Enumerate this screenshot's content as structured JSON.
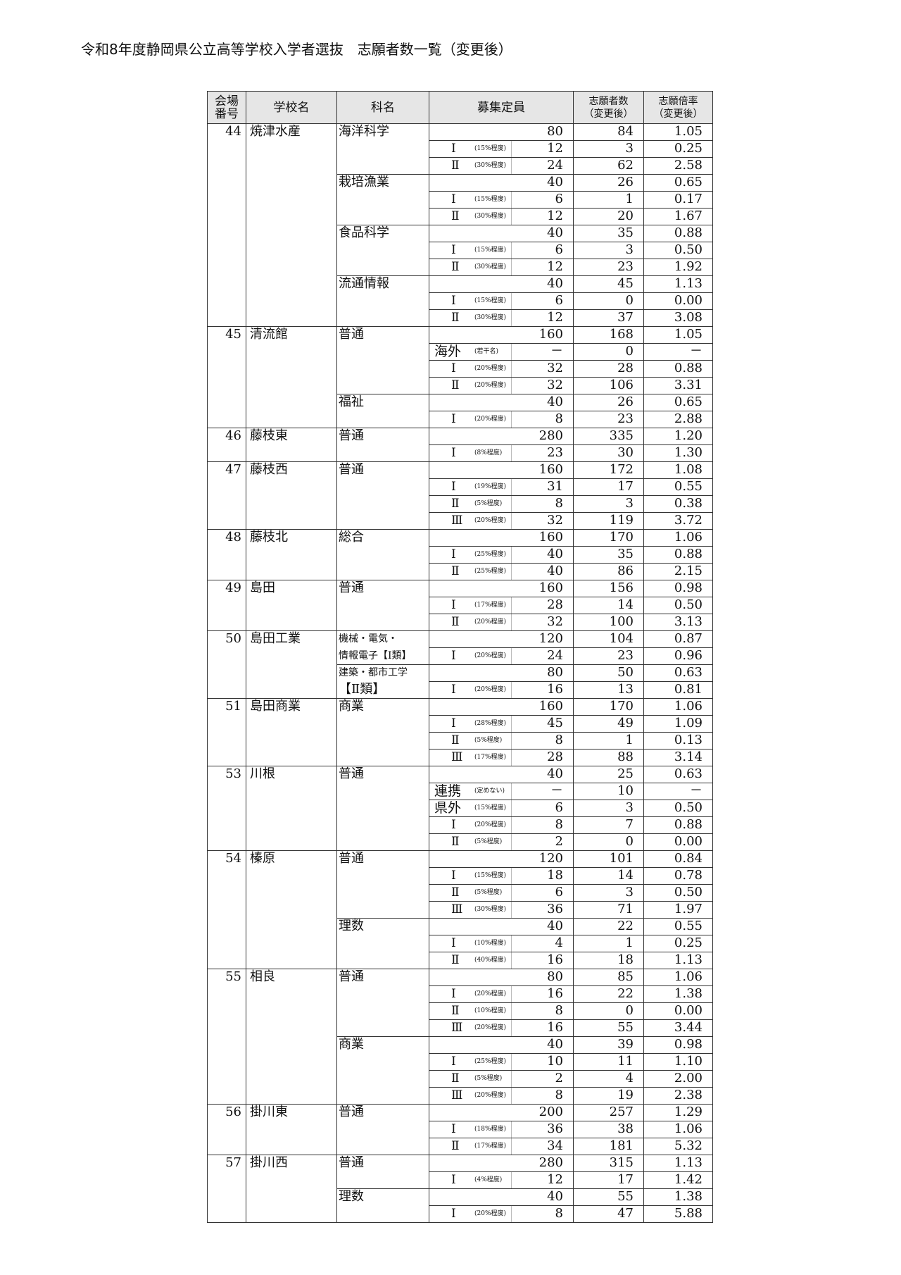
{
  "title": "令和8年度静岡県公立高等学校入学者選抜　志願者数一覧（変更後）",
  "header": {
    "no": [
      "会場",
      "番号"
    ],
    "school": "学校名",
    "subject": "科名",
    "quota": "募集定員",
    "applicants": [
      "志願者数",
      "（変更後）"
    ],
    "ratio": [
      "志願倍率",
      "（変更後）"
    ]
  },
  "schools": [
    {
      "no": "44",
      "name": "焼津水産",
      "subjects": [
        {
          "name": [
            "海洋科学"
          ],
          "rows": [
            {
              "cap": "80",
              "app": "84",
              "ratio": "1.05"
            },
            {
              "type": "Ⅰ",
              "note": "(15%程度)",
              "cap": "12",
              "app": "3",
              "ratio": "0.25"
            },
            {
              "type": "Ⅱ",
              "note": "(30%程度)",
              "cap": "24",
              "app": "62",
              "ratio": "2.58"
            }
          ]
        },
        {
          "name": [
            "栽培漁業"
          ],
          "rows": [
            {
              "cap": "40",
              "app": "26",
              "ratio": "0.65"
            },
            {
              "type": "Ⅰ",
              "note": "(15%程度)",
              "cap": "6",
              "app": "1",
              "ratio": "0.17"
            },
            {
              "type": "Ⅱ",
              "note": "(30%程度)",
              "cap": "12",
              "app": "20",
              "ratio": "1.67"
            }
          ]
        },
        {
          "name": [
            "食品科学"
          ],
          "rows": [
            {
              "cap": "40",
              "app": "35",
              "ratio": "0.88"
            },
            {
              "type": "Ⅰ",
              "note": "(15%程度)",
              "cap": "6",
              "app": "3",
              "ratio": "0.50"
            },
            {
              "type": "Ⅱ",
              "note": "(30%程度)",
              "cap": "12",
              "app": "23",
              "ratio": "1.92"
            }
          ]
        },
        {
          "name": [
            "流通情報"
          ],
          "rows": [
            {
              "cap": "40",
              "app": "45",
              "ratio": "1.13"
            },
            {
              "type": "Ⅰ",
              "note": "(15%程度)",
              "cap": "6",
              "app": "0",
              "ratio": "0.00"
            },
            {
              "type": "Ⅱ",
              "note": "(30%程度)",
              "cap": "12",
              "app": "37",
              "ratio": "3.08"
            }
          ]
        }
      ]
    },
    {
      "no": "45",
      "name": "清流館",
      "subjects": [
        {
          "name": [
            "普通"
          ],
          "rows": [
            {
              "cap": "160",
              "app": "168",
              "ratio": "1.05"
            },
            {
              "type": "海外",
              "note": "(若干名)",
              "cap": "－",
              "app": "0",
              "ratio": "－"
            },
            {
              "type": "Ⅰ",
              "note": "(20%程度)",
              "cap": "32",
              "app": "28",
              "ratio": "0.88"
            },
            {
              "type": "Ⅱ",
              "note": "(20%程度)",
              "cap": "32",
              "app": "106",
              "ratio": "3.31"
            }
          ]
        },
        {
          "name": [
            "福祉"
          ],
          "rows": [
            {
              "cap": "40",
              "app": "26",
              "ratio": "0.65"
            },
            {
              "type": "Ⅰ",
              "note": "(20%程度)",
              "cap": "8",
              "app": "23",
              "ratio": "2.88"
            }
          ]
        }
      ]
    },
    {
      "no": "46",
      "name": "藤枝東",
      "subjects": [
        {
          "name": [
            "普通"
          ],
          "rows": [
            {
              "cap": "280",
              "app": "335",
              "ratio": "1.20"
            },
            {
              "type": "Ⅰ",
              "note": "(8%程度)",
              "cap": "23",
              "app": "30",
              "ratio": "1.30"
            }
          ]
        }
      ]
    },
    {
      "no": "47",
      "name": "藤枝西",
      "subjects": [
        {
          "name": [
            "普通"
          ],
          "rows": [
            {
              "cap": "160",
              "app": "172",
              "ratio": "1.08"
            },
            {
              "type": "Ⅰ",
              "note": "(19%程度)",
              "cap": "31",
              "app": "17",
              "ratio": "0.55"
            },
            {
              "type": "Ⅱ",
              "note": "(5%程度)",
              "cap": "8",
              "app": "3",
              "ratio": "0.38"
            },
            {
              "type": "Ⅲ",
              "note": "(20%程度)",
              "cap": "32",
              "app": "119",
              "ratio": "3.72"
            }
          ]
        }
      ]
    },
    {
      "no": "48",
      "name": "藤枝北",
      "subjects": [
        {
          "name": [
            "総合"
          ],
          "rows": [
            {
              "cap": "160",
              "app": "170",
              "ratio": "1.06"
            },
            {
              "type": "Ⅰ",
              "note": "(25%程度)",
              "cap": "40",
              "app": "35",
              "ratio": "0.88"
            },
            {
              "type": "Ⅱ",
              "note": "(25%程度)",
              "cap": "40",
              "app": "86",
              "ratio": "2.15"
            }
          ]
        }
      ]
    },
    {
      "no": "49",
      "name": "島田",
      "subjects": [
        {
          "name": [
            "普通"
          ],
          "rows": [
            {
              "cap": "160",
              "app": "156",
              "ratio": "0.98"
            },
            {
              "type": "Ⅰ",
              "note": "(17%程度)",
              "cap": "28",
              "app": "14",
              "ratio": "0.50"
            },
            {
              "type": "Ⅱ",
              "note": "(20%程度)",
              "cap": "32",
              "app": "100",
              "ratio": "3.13"
            }
          ]
        }
      ]
    },
    {
      "no": "50",
      "name": "島田工業",
      "subjects": [
        {
          "name": [
            "機械・電気・",
            "情報電子【Ⅰ類】"
          ],
          "rows": [
            {
              "cap": "120",
              "app": "104",
              "ratio": "0.87"
            },
            {
              "type": "Ⅰ",
              "note": "(20%程度)",
              "cap": "24",
              "app": "23",
              "ratio": "0.96"
            }
          ]
        },
        {
          "name": [
            "建築・都市工学",
            "【Ⅱ類】"
          ],
          "rows": [
            {
              "cap": "80",
              "app": "50",
              "ratio": "0.63"
            },
            {
              "type": "Ⅰ",
              "note": "(20%程度)",
              "cap": "16",
              "app": "13",
              "ratio": "0.81"
            }
          ]
        }
      ]
    },
    {
      "no": "51",
      "name": "島田商業",
      "subjects": [
        {
          "name": [
            "商業"
          ],
          "rows": [
            {
              "cap": "160",
              "app": "170",
              "ratio": "1.06"
            },
            {
              "type": "Ⅰ",
              "note": "(28%程度)",
              "cap": "45",
              "app": "49",
              "ratio": "1.09"
            },
            {
              "type": "Ⅱ",
              "note": "(5%程度)",
              "cap": "8",
              "app": "1",
              "ratio": "0.13"
            },
            {
              "type": "Ⅲ",
              "note": "(17%程度)",
              "cap": "28",
              "app": "88",
              "ratio": "3.14"
            }
          ]
        }
      ]
    },
    {
      "no": "53",
      "name": "川根",
      "subjects": [
        {
          "name": [
            "普通"
          ],
          "rows": [
            {
              "cap": "40",
              "app": "25",
              "ratio": "0.63"
            },
            {
              "type": "連携",
              "note": "(定めない)",
              "cap": "－",
              "app": "10",
              "ratio": "－"
            },
            {
              "type": "県外",
              "note": "(15%程度)",
              "cap": "6",
              "app": "3",
              "ratio": "0.50"
            },
            {
              "type": "Ⅰ",
              "note": "(20%程度)",
              "cap": "8",
              "app": "7",
              "ratio": "0.88"
            },
            {
              "type": "Ⅱ",
              "note": "(5%程度)",
              "cap": "2",
              "app": "0",
              "ratio": "0.00"
            }
          ]
        }
      ]
    },
    {
      "no": "54",
      "name": "榛原",
      "subjects": [
        {
          "name": [
            "普通"
          ],
          "rows": [
            {
              "cap": "120",
              "app": "101",
              "ratio": "0.84"
            },
            {
              "type": "Ⅰ",
              "note": "(15%程度)",
              "cap": "18",
              "app": "14",
              "ratio": "0.78"
            },
            {
              "type": "Ⅱ",
              "note": "(5%程度)",
              "cap": "6",
              "app": "3",
              "ratio": "0.50"
            },
            {
              "type": "Ⅲ",
              "note": "(30%程度)",
              "cap": "36",
              "app": "71",
              "ratio": "1.97"
            }
          ]
        },
        {
          "name": [
            "理数"
          ],
          "rows": [
            {
              "cap": "40",
              "app": "22",
              "ratio": "0.55"
            },
            {
              "type": "Ⅰ",
              "note": "(10%程度)",
              "cap": "4",
              "app": "1",
              "ratio": "0.25"
            },
            {
              "type": "Ⅱ",
              "note": "(40%程度)",
              "cap": "16",
              "app": "18",
              "ratio": "1.13"
            }
          ]
        }
      ]
    },
    {
      "no": "55",
      "name": "相良",
      "subjects": [
        {
          "name": [
            "普通"
          ],
          "rows": [
            {
              "cap": "80",
              "app": "85",
              "ratio": "1.06"
            },
            {
              "type": "Ⅰ",
              "note": "(20%程度)",
              "cap": "16",
              "app": "22",
              "ratio": "1.38"
            },
            {
              "type": "Ⅱ",
              "note": "(10%程度)",
              "cap": "8",
              "app": "0",
              "ratio": "0.00"
            },
            {
              "type": "Ⅲ",
              "note": "(20%程度)",
              "cap": "16",
              "app": "55",
              "ratio": "3.44"
            }
          ]
        },
        {
          "name": [
            "商業"
          ],
          "rows": [
            {
              "cap": "40",
              "app": "39",
              "ratio": "0.98"
            },
            {
              "type": "Ⅰ",
              "note": "(25%程度)",
              "cap": "10",
              "app": "11",
              "ratio": "1.10"
            },
            {
              "type": "Ⅱ",
              "note": "(5%程度)",
              "cap": "2",
              "app": "4",
              "ratio": "2.00"
            },
            {
              "type": "Ⅲ",
              "note": "(20%程度)",
              "cap": "8",
              "app": "19",
              "ratio": "2.38"
            }
          ]
        }
      ]
    },
    {
      "no": "56",
      "name": "掛川東",
      "subjects": [
        {
          "name": [
            "普通"
          ],
          "rows": [
            {
              "cap": "200",
              "app": "257",
              "ratio": "1.29"
            },
            {
              "type": "Ⅰ",
              "note": "(18%程度)",
              "cap": "36",
              "app": "38",
              "ratio": "1.06"
            },
            {
              "type": "Ⅱ",
              "note": "(17%程度)",
              "cap": "34",
              "app": "181",
              "ratio": "5.32"
            }
          ]
        }
      ]
    },
    {
      "no": "57",
      "name": "掛川西",
      "subjects": [
        {
          "name": [
            "普通"
          ],
          "rows": [
            {
              "cap": "280",
              "app": "315",
              "ratio": "1.13"
            },
            {
              "type": "Ⅰ",
              "note": "(4%程度)",
              "cap": "12",
              "app": "17",
              "ratio": "1.42"
            }
          ]
        },
        {
          "name": [
            "理数"
          ],
          "rows": [
            {
              "cap": "40",
              "app": "55",
              "ratio": "1.38"
            },
            {
              "type": "Ⅰ",
              "note": "(20%程度)",
              "cap": "8",
              "app": "47",
              "ratio": "5.88"
            }
          ]
        }
      ]
    }
  ]
}
